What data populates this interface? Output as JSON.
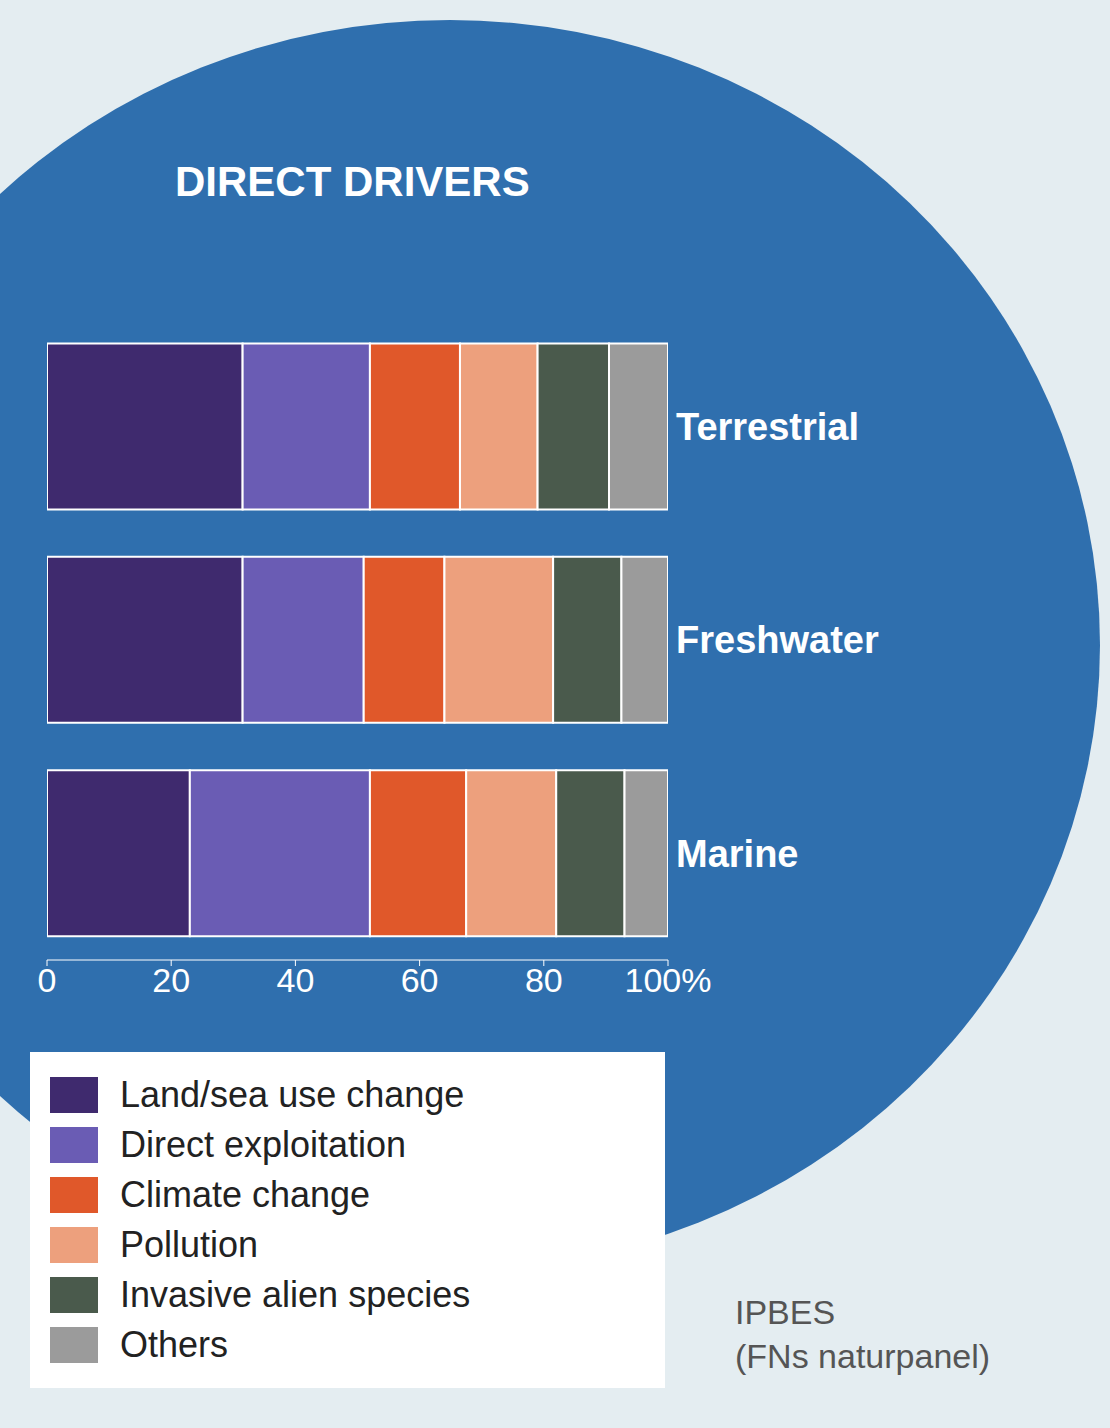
{
  "chart_data": {
    "type": "bar",
    "orientation": "horizontal",
    "stacked": true,
    "title": "DIRECT DRIVERS",
    "categories": [
      "Terrestrial",
      "Freshwater",
      "Marine"
    ],
    "series": [
      {
        "name": "Land/sea use change",
        "color": "#3f2a6e",
        "values": [
          31.5,
          31.5,
          23
        ]
      },
      {
        "name": "Direct exploitation",
        "color": "#6a5cb4",
        "values": [
          20.5,
          19.5,
          29
        ]
      },
      {
        "name": "Climate change",
        "color": "#e0582a",
        "values": [
          14.5,
          13,
          15.5
        ]
      },
      {
        "name": "Pollution",
        "color": "#eda07d",
        "values": [
          12.5,
          17.5,
          14.5
        ]
      },
      {
        "name": "Invasive alien species",
        "color": "#4a5a4c",
        "values": [
          11.5,
          11,
          11
        ]
      },
      {
        "name": "Others",
        "color": "#9b9b9b",
        "values": [
          9.5,
          7.5,
          7
        ]
      }
    ],
    "xlim": [
      0,
      100
    ],
    "xticks": [
      0,
      20,
      40,
      60,
      80,
      {
        "value": 100,
        "label": "100%"
      }
    ],
    "grid": false,
    "legend": "bottom-left",
    "source": [
      "IPBES",
      "(FNs naturpanel)"
    ]
  }
}
